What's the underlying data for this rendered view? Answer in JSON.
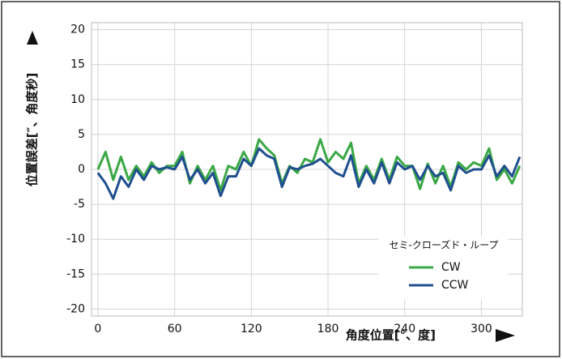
{
  "chart_data": {
    "type": "line",
    "x_label": "角度位置[°、度]",
    "y_label": "位置誤差[″、角度秒]",
    "legend_title": "セミ-クローズド・ループ",
    "x": [
      0,
      6,
      12,
      18,
      24,
      30,
      36,
      42,
      48,
      54,
      60,
      66,
      72,
      78,
      84,
      90,
      96,
      102,
      108,
      114,
      120,
      126,
      132,
      138,
      144,
      150,
      156,
      162,
      168,
      174,
      180,
      186,
      192,
      198,
      204,
      210,
      216,
      222,
      228,
      234,
      240,
      246,
      252,
      258,
      264,
      270,
      276,
      282,
      288,
      294,
      300,
      306,
      312,
      318,
      324,
      330
    ],
    "series": [
      {
        "name": "CW",
        "color": "#3aa845",
        "values": [
          0,
          2.5,
          -1.5,
          1.8,
          -1.5,
          0.5,
          -1,
          1,
          -0.5,
          0.5,
          0.5,
          2.5,
          -2,
          0.5,
          -1.5,
          0.5,
          -3,
          0.5,
          0,
          2.5,
          0.5,
          4.3,
          3,
          2,
          -2,
          0.5,
          -0.5,
          1.5,
          1,
          4.3,
          1,
          2.5,
          1.5,
          3.8,
          -2,
          0.5,
          -1.5,
          1.5,
          -1.5,
          1.8,
          0.5,
          0.5,
          -2.8,
          0.8,
          -2,
          0.5,
          -2.5,
          1,
          0,
          1,
          0.5,
          3,
          -1.5,
          0,
          -2,
          0.5
        ]
      },
      {
        "name": "CCW",
        "color": "#1f4f8f",
        "values": [
          -0.5,
          -2,
          -4.2,
          -1,
          -2.5,
          0,
          -1.5,
          0.5,
          0,
          0.3,
          0,
          1.8,
          -1.5,
          0,
          -2,
          -0.5,
          -3.8,
          -1,
          -1,
          1.5,
          0.5,
          3,
          2,
          1.5,
          -2.5,
          0.3,
          0,
          0.5,
          0.8,
          1.5,
          0.5,
          -0.5,
          -1,
          2,
          -2.5,
          0,
          -2,
          1,
          -2,
          1,
          0,
          0.5,
          -1.5,
          0.5,
          -1,
          -0.5,
          -3,
          0.5,
          -0.5,
          0,
          0,
          2,
          -1,
          0.5,
          -1,
          1.8
        ]
      }
    ],
    "xlim": [
      -5,
      332
    ],
    "ylim": [
      -21,
      21
    ],
    "xticks": [
      0,
      60,
      120,
      180,
      240,
      300
    ],
    "yticks": [
      -20,
      -15,
      -10,
      -5,
      0,
      5,
      10,
      15,
      20
    ],
    "grid": true
  }
}
